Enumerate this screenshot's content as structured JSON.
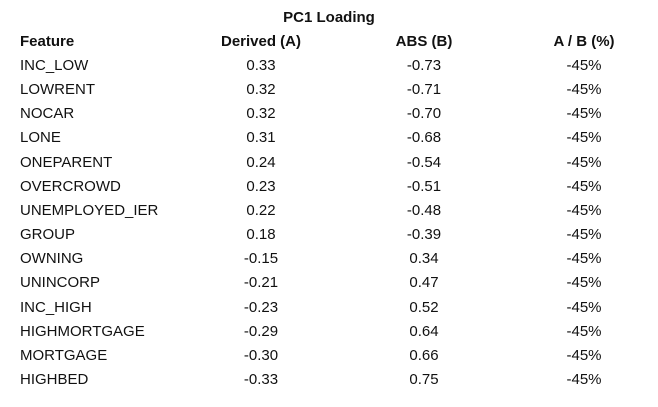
{
  "table": {
    "title": "PC1 Loading",
    "columns": [
      "Feature",
      "Derived (A)",
      "ABS (B)",
      "A / B (%)"
    ],
    "rows": [
      [
        "INC_LOW",
        "0.33",
        "-0.73",
        "-45%"
      ],
      [
        "LOWRENT",
        "0.32",
        "-0.71",
        "-45%"
      ],
      [
        "NOCAR",
        "0.32",
        "-0.70",
        "-45%"
      ],
      [
        "LONE",
        "0.31",
        "-0.68",
        "-45%"
      ],
      [
        "ONEPARENT",
        "0.24",
        "-0.54",
        "-45%"
      ],
      [
        "OVERCROWD",
        "0.23",
        "-0.51",
        "-45%"
      ],
      [
        "UNEMPLOYED_IER",
        "0.22",
        "-0.48",
        "-45%"
      ],
      [
        "GROUP",
        "0.18",
        "-0.39",
        "-45%"
      ],
      [
        "OWNING",
        "-0.15",
        "0.34",
        "-45%"
      ],
      [
        "UNINCORP",
        "-0.21",
        "0.47",
        "-45%"
      ],
      [
        "INC_HIGH",
        "-0.23",
        "0.52",
        "-45%"
      ],
      [
        "HIGHMORTGAGE",
        "-0.29",
        "0.64",
        "-45%"
      ],
      [
        "MORTGAGE",
        "-0.30",
        "0.66",
        "-45%"
      ],
      [
        "HIGHBED",
        "-0.33",
        "0.75",
        "-45%"
      ]
    ]
  }
}
